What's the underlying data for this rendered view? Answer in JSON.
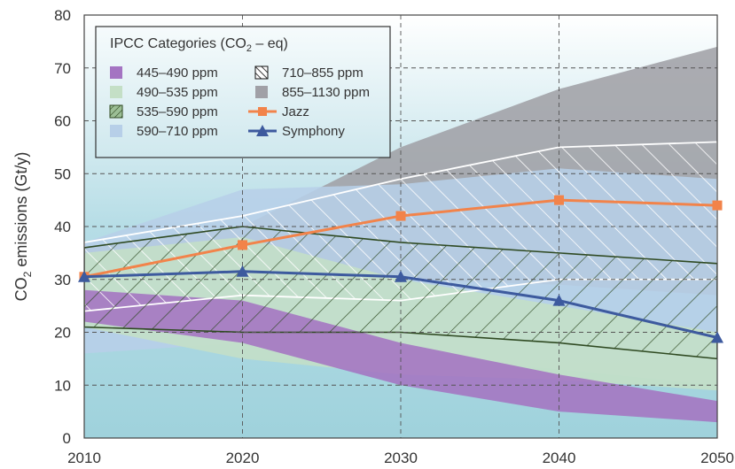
{
  "chart_data": {
    "type": "area",
    "ylabel": "CO",
    "ylabel_sub": "2",
    "ylabel_rest": " emissions (Gt/y)",
    "xlim": [
      2010,
      2050
    ],
    "ylim": [
      0,
      80
    ],
    "x_ticks": [
      "2010",
      "2020",
      "2030",
      "2040",
      "2050"
    ],
    "y_ticks": [
      "0",
      "10",
      "20",
      "30",
      "40",
      "50",
      "60",
      "70",
      "80"
    ],
    "grid": true,
    "legend": {
      "placement": "top-left",
      "title": "IPCC Categories (CO",
      "title_sub": "2",
      "title_rest": " – eq)",
      "entries": [
        {
          "label": "445–490 ppm",
          "color": "#a474c2",
          "kind": "box"
        },
        {
          "label": "490–535 ppm",
          "color": "#c4dfc6",
          "kind": "box"
        },
        {
          "label": "535–590 ppm",
          "color": "#9cbf96",
          "kind": "hatch-dark"
        },
        {
          "label": "590–710 ppm",
          "color": "#b7cfe8",
          "kind": "box"
        },
        {
          "label": "710–855 ppm",
          "color": "#444444",
          "kind": "hatch-black"
        },
        {
          "label": "855–1130 ppm",
          "color": "#a0a0a6",
          "kind": "box"
        },
        {
          "label": "Jazz",
          "color": "#f2834a",
          "kind": "line-square"
        },
        {
          "label": "Symphony",
          "color": "#3d5a9e",
          "kind": "line-triangle"
        }
      ]
    },
    "bands": [
      {
        "name": "855–1130 ppm",
        "color": "#a0a0a6",
        "x": [
          2010,
          2020,
          2030,
          2040,
          2050
        ],
        "lower": [
          30,
          30,
          30,
          29,
          27
        ],
        "upper": [
          36,
          40,
          55,
          66,
          74
        ]
      },
      {
        "name": "590–710 ppm",
        "color": "#b7cfe8",
        "x": [
          2010,
          2020,
          2030,
          2040,
          2050
        ],
        "lower": [
          16,
          18,
          16,
          13,
          10
        ],
        "upper": [
          37,
          47,
          48,
          51,
          49
        ]
      },
      {
        "name": "490–535 ppm",
        "color": "#c4dfc6",
        "x": [
          2010,
          2020,
          2030,
          2040,
          2050
        ],
        "lower": [
          21,
          15,
          12,
          11,
          9
        ],
        "upper": [
          35,
          38,
          30,
          25,
          20
        ]
      },
      {
        "name": "445–490 ppm",
        "color": "#a474c2",
        "x": [
          2010,
          2020,
          2030,
          2040,
          2050
        ],
        "lower": [
          22,
          18,
          10,
          5,
          3
        ],
        "upper": [
          28,
          26,
          18,
          12,
          7
        ]
      },
      {
        "name": "710–855 ppm",
        "color": "#ffffff",
        "x": [
          2010,
          2020,
          2030,
          2040,
          2050
        ],
        "lower": [
          24,
          27,
          26,
          30,
          30
        ],
        "upper": [
          37,
          42,
          49,
          55,
          56
        ]
      },
      {
        "name": "535–590 ppm",
        "color": "#2f4a22",
        "x": [
          2010,
          2020,
          2030,
          2040,
          2050
        ],
        "lower": [
          21,
          20,
          20,
          18,
          15
        ],
        "upper": [
          36,
          40,
          37,
          35,
          33
        ]
      }
    ],
    "series": [
      {
        "name": "Jazz",
        "color": "#f2834a",
        "marker": "square",
        "x": [
          2010,
          2020,
          2030,
          2040,
          2050
        ],
        "values": [
          30.5,
          36.5,
          42,
          45,
          44
        ]
      },
      {
        "name": "Symphony",
        "color": "#3d5a9e",
        "marker": "triangle",
        "x": [
          2010,
          2020,
          2030,
          2040,
          2050
        ],
        "values": [
          30.5,
          31.5,
          30.5,
          26,
          19
        ]
      }
    ]
  }
}
